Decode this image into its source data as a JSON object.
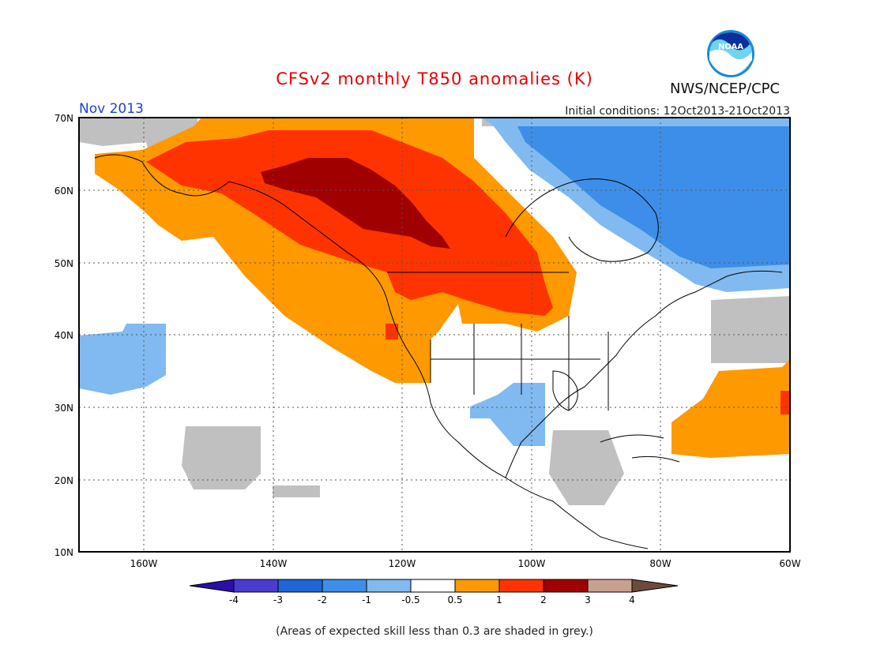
{
  "title": "CFSv2 monthly T850 anomalies (K)",
  "organization": "NWS/NCEP/CPC",
  "logo_text": "NOAA",
  "valid_month": "Nov 2013",
  "initial_conditions": "Initial conditions: 12Oct2013-21Oct2013",
  "footnote": "(Areas of expected skill less than 0.3 are shaded in grey.)",
  "map": {
    "lat_labels": [
      "70N",
      "60N",
      "50N",
      "40N",
      "30N",
      "20N",
      "10N"
    ],
    "lon_labels": [
      "160W",
      "140W",
      "120W",
      "100W",
      "80W",
      "60W"
    ],
    "lon_range": [
      -170,
      -60
    ],
    "lat_range": [
      10,
      70
    ],
    "grid": "dotted",
    "low_skill_color": "#c0c0c0"
  },
  "legend": {
    "ticks": [
      "-4",
      "-3",
      "-2",
      "-1",
      "-0.5",
      "0.5",
      "1",
      "2",
      "3",
      "4"
    ],
    "colors": [
      "#2a0fa8",
      "#4a3ccf",
      "#1f66d6",
      "#3d8ee8",
      "#80baf0",
      "#ffffff",
      "#ff9900",
      "#ff3300",
      "#a00000",
      "#c8a090",
      "#6e4a3c"
    ]
  },
  "anomaly_regions": [
    {
      "name": "western-canada-warm",
      "category": "0.5 to 1"
    },
    {
      "name": "western-canada-warm-core",
      "category": "1 to 2"
    },
    {
      "name": "northwest-canada-max",
      "category": "2 to 3"
    },
    {
      "name": "eastern-canada-cold",
      "category": "-1 to -0.5"
    },
    {
      "name": "hudson-bay-cold",
      "category": "-2 to -1"
    },
    {
      "name": "pacific-cold",
      "category": "-1 to -0.5"
    },
    {
      "name": "mexico-cold",
      "category": "-1 to -0.5"
    },
    {
      "name": "atlantic-warm",
      "category": "0.5 to 1"
    }
  ]
}
